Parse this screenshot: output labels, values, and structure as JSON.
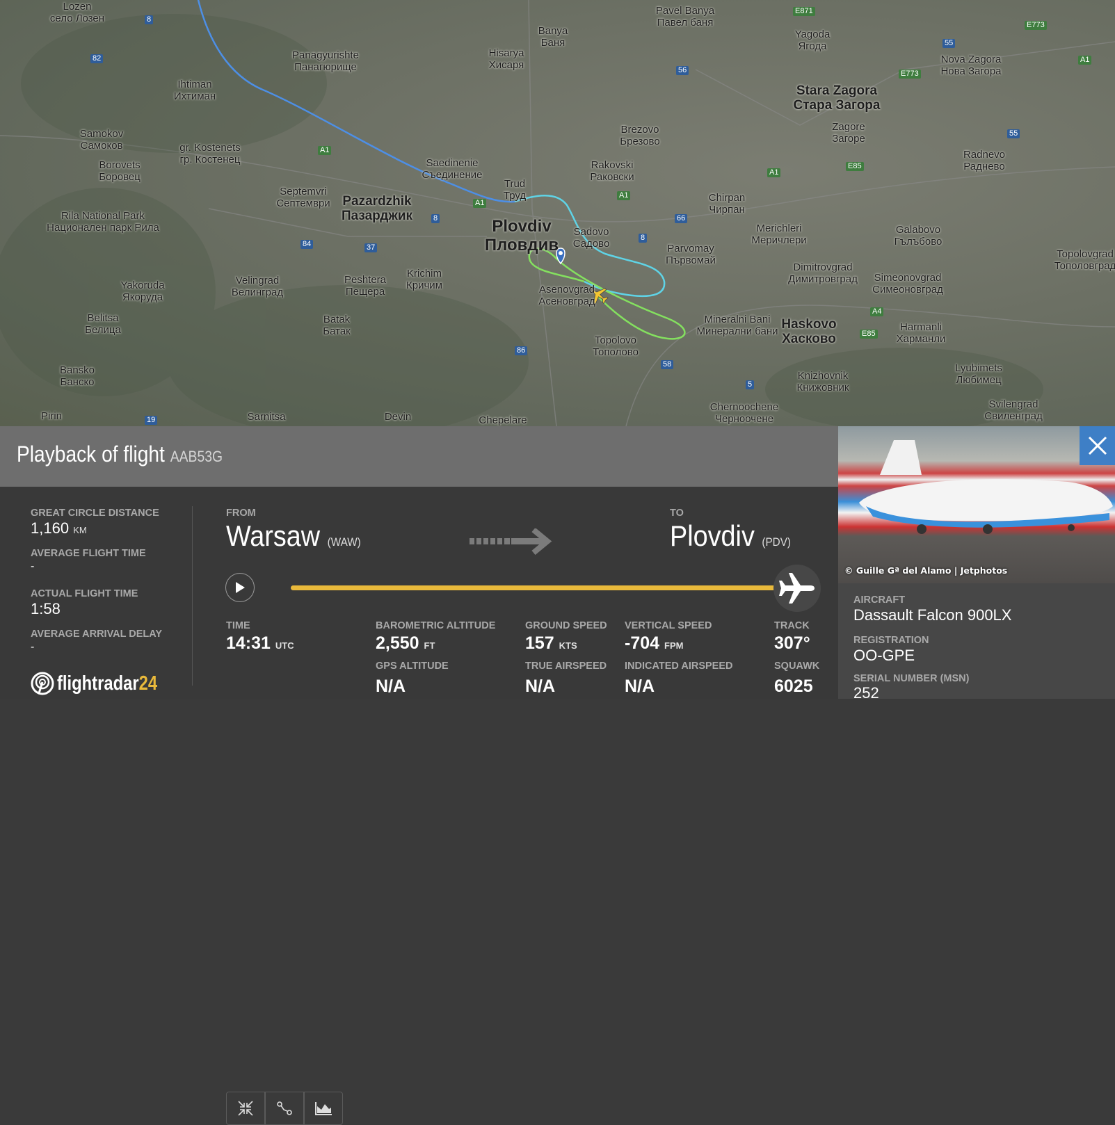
{
  "map": {
    "labels": [
      {
        "en": "Plovdiv",
        "bg": "Пловдив"
      },
      {
        "en": "Pazardzhik",
        "bg": "Пазарджик"
      },
      {
        "en": "Stara Zagora",
        "bg": "Стара Загора"
      },
      {
        "en": "Haskovo",
        "bg": "Хасково"
      },
      {
        "en": "Asenovgrad",
        "bg": "Асеновград"
      },
      {
        "en": "Sadovo",
        "bg": "Садово"
      },
      {
        "en": "Rakovski",
        "bg": "Раковски"
      },
      {
        "en": "Trud",
        "bg": "Труд"
      },
      {
        "en": "Saedinenie",
        "bg": "Съединение"
      },
      {
        "en": "Parvomay",
        "bg": "Първомай"
      },
      {
        "en": "Chirpan",
        "bg": "Чирпан"
      },
      {
        "en": "Brezovo",
        "bg": "Брезово"
      },
      {
        "en": "Peshtera",
        "bg": "Пещера"
      },
      {
        "en": "Krichim",
        "bg": "Кричим"
      },
      {
        "en": "Velingrad",
        "bg": "Велинград"
      },
      {
        "en": "Batak",
        "bg": "Батак"
      },
      {
        "en": "Septemvri",
        "bg": "Септември"
      },
      {
        "en": "Topolovo",
        "bg": "Тополово"
      },
      {
        "en": "Mineralni Bani",
        "bg": "Минерални бани"
      },
      {
        "en": "Dimitrovgrad",
        "bg": "Димитровград"
      },
      {
        "en": "Simeonovgrad",
        "bg": "Симеоновград"
      },
      {
        "en": "Merichleri",
        "bg": "Меричлери"
      },
      {
        "en": "Galabovo",
        "bg": "Гълъбово"
      },
      {
        "en": "Radnevo",
        "bg": "Раднево"
      },
      {
        "en": "Zagore",
        "bg": "Загоре"
      },
      {
        "en": "Yagoda",
        "bg": "Ягода"
      },
      {
        "en": "Nova Zagora",
        "bg": "Нова Загора"
      },
      {
        "en": "Hisarya",
        "bg": "Хисаря"
      },
      {
        "en": "Banya",
        "bg": "Баня"
      },
      {
        "en": "Panagyurishte",
        "bg": "Панагюрище"
      },
      {
        "en": "Ihtiman",
        "bg": "Ихтиман"
      },
      {
        "en": "Samokov",
        "bg": "Самоков"
      },
      {
        "en": "Borovets",
        "bg": "Боровец"
      },
      {
        "en": "gr. Kostenets",
        "bg": "гр. Костенец"
      },
      {
        "en": "Yakoruda",
        "bg": "Якоруда"
      },
      {
        "en": "Belitsa",
        "bg": "Белица"
      },
      {
        "en": "Bansko",
        "bg": "Банско"
      },
      {
        "en": "Harmanli",
        "bg": "Харманли"
      },
      {
        "en": "Lyubimets",
        "bg": "Любимец"
      },
      {
        "en": "Knizhovnik",
        "bg": "Книжовник"
      },
      {
        "en": "Chernoochene",
        "bg": "Черноочене"
      },
      {
        "en": "Svilengrad",
        "bg": "Свиленград"
      },
      {
        "en": "Pavel Banya",
        "bg": "Павел баня"
      },
      {
        "en": "Lozen",
        "bg": "село Лозен"
      },
      {
        "en": "Topolovgrad",
        "bg": "Тополовград"
      },
      {
        "en": "Rila National Park",
        "bg": "Национален парк Рила"
      },
      {
        "en": "Sarnitsa",
        "bg": ""
      },
      {
        "en": "Devin",
        "bg": ""
      },
      {
        "en": "Chepelare",
        "bg": ""
      },
      {
        "en": "Pirin",
        "bg": ""
      }
    ],
    "roads": [
      "8",
      "82",
      "A1",
      "A1",
      "A1",
      "A1",
      "37",
      "84",
      "8",
      "66",
      "8",
      "56",
      "55",
      "55",
      "E85",
      "E85",
      "A4",
      "86",
      "58",
      "5",
      "19",
      "E773",
      "E871",
      "E773",
      "A1"
    ],
    "path_colors": {
      "early": "#4d8fe6",
      "mid": "#5fd3e6",
      "late": "#84e05f"
    }
  },
  "header": {
    "title": "Playback of flight",
    "callsign": "AAB53G"
  },
  "summary": [
    {
      "label": "GREAT CIRCLE DISTANCE",
      "value": "1,160",
      "unit": "KM"
    },
    {
      "label": "AVERAGE FLIGHT TIME",
      "value": "-"
    },
    {
      "label": "ACTUAL FLIGHT TIME",
      "value": "1:58"
    },
    {
      "label": "AVERAGE ARRIVAL DELAY",
      "value": "-"
    }
  ],
  "logo": {
    "text": "flightradar",
    "num": "24"
  },
  "route": {
    "from_label": "FROM",
    "from_city": "Warsaw",
    "from_code": "(WAW)",
    "to_label": "TO",
    "to_city": "Plovdiv",
    "to_code": "(PDV)"
  },
  "playback": {
    "progress_percent": 100,
    "bar_color": "#e9b93b"
  },
  "stats": {
    "time": {
      "label": "TIME",
      "value": "14:31",
      "unit": "UTC"
    },
    "baro_alt": {
      "label": "BAROMETRIC ALTITUDE",
      "value": "2,550",
      "unit": "FT"
    },
    "gps_alt": {
      "label": "GPS ALTITUDE",
      "value": "N/A"
    },
    "ground_speed": {
      "label": "GROUND SPEED",
      "value": "157",
      "unit": "KTS"
    },
    "true_airspeed": {
      "label": "TRUE AIRSPEED",
      "value": "N/A"
    },
    "vertical_speed": {
      "label": "VERTICAL SPEED",
      "value": "-704",
      "unit": "FPM"
    },
    "indicated_airspeed": {
      "label": "INDICATED AIRSPEED",
      "value": "N/A"
    },
    "track": {
      "label": "TRACK",
      "value": "307°"
    },
    "squawk": {
      "label": "SQUAWK",
      "value": "6025"
    }
  },
  "aircraft": {
    "photo_credit": "© Guille Gª del Alamo | Jetphotos",
    "aircraft_label": "AIRCRAFT",
    "aircraft": "Dassault Falcon 900LX",
    "registration_label": "REGISTRATION",
    "registration": "OO-GPE",
    "msn_label": "SERIAL NUMBER (MSN)",
    "msn": "252"
  },
  "icons": {
    "close": "close-icon",
    "play": "play-icon",
    "plane": "airplane-icon",
    "arrow": "route-arrow-icon",
    "tools": [
      "collapse-icon",
      "route-icon",
      "chart-icon"
    ]
  },
  "accent": "#3e7fc6"
}
